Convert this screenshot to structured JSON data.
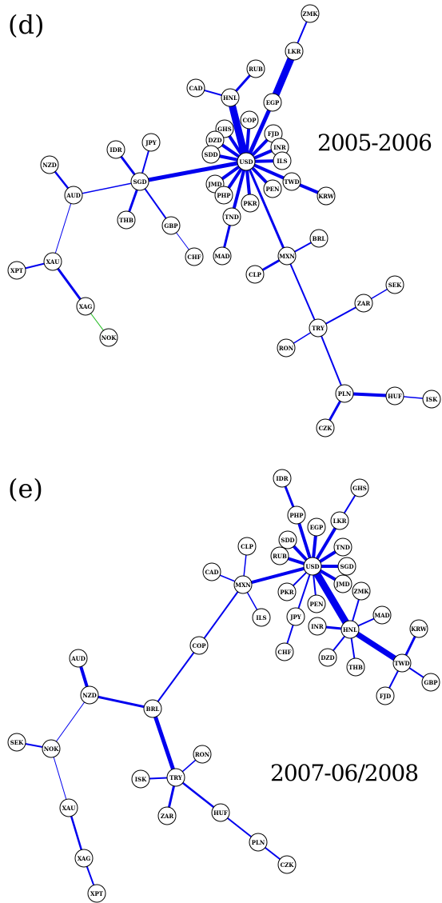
{
  "colors": {
    "strong": "#0000ee",
    "weak": "#22bb22",
    "node_stroke": "#000000",
    "node_fill": "#ffffff"
  },
  "panels": [
    {
      "tag": "(d)",
      "period": "2005-2006",
      "nodes": [
        "ZMK",
        "LKR",
        "RUB",
        "CAD",
        "HNL",
        "EGP",
        "COP",
        "GHS",
        "DZD",
        "FJD",
        "INR",
        "SDD",
        "USD",
        "ILS",
        "IDR",
        "JPY",
        "NZD",
        "SGD",
        "AUD",
        "JMD",
        "PHP",
        "TWD",
        "PEN",
        "KRW",
        "PKR",
        "TND",
        "THB",
        "GBP",
        "CHF",
        "MAD",
        "BRL",
        "MXN",
        "CLP",
        "XAU",
        "XPT",
        "SEK",
        "ZAR",
        "XAG",
        "TRY",
        "NOK",
        "RON",
        "PLN",
        "HUF",
        "ISK",
        "CZK"
      ],
      "edges": [
        {
          "a": "USD",
          "b": "HNL",
          "strength": "strong",
          "weight": 9
        },
        {
          "a": "USD",
          "b": "EGP",
          "strength": "strong",
          "weight": 5
        },
        {
          "a": "EGP",
          "b": "LKR",
          "strength": "strong",
          "weight": 9
        },
        {
          "a": "LKR",
          "b": "ZMK",
          "strength": "strong",
          "weight": 2
        },
        {
          "a": "HNL",
          "b": "CAD",
          "strength": "strong",
          "weight": 2
        },
        {
          "a": "HNL",
          "b": "RUB",
          "strength": "strong",
          "weight": 3
        },
        {
          "a": "USD",
          "b": "COP",
          "strength": "strong",
          "weight": 4
        },
        {
          "a": "USD",
          "b": "GHS",
          "strength": "strong",
          "weight": 4
        },
        {
          "a": "USD",
          "b": "DZD",
          "strength": "strong",
          "weight": 4
        },
        {
          "a": "USD",
          "b": "SDD",
          "strength": "strong",
          "weight": 4
        },
        {
          "a": "USD",
          "b": "FJD",
          "strength": "strong",
          "weight": 4
        },
        {
          "a": "USD",
          "b": "INR",
          "strength": "strong",
          "weight": 4
        },
        {
          "a": "USD",
          "b": "ILS",
          "strength": "strong",
          "weight": 4
        },
        {
          "a": "USD",
          "b": "TWD",
          "strength": "strong",
          "weight": 4
        },
        {
          "a": "TWD",
          "b": "KRW",
          "strength": "strong",
          "weight": 4
        },
        {
          "a": "USD",
          "b": "PEN",
          "strength": "strong",
          "weight": 4
        },
        {
          "a": "USD",
          "b": "PKR",
          "strength": "strong",
          "weight": 4
        },
        {
          "a": "USD",
          "b": "PHP",
          "strength": "strong",
          "weight": 4
        },
        {
          "a": "USD",
          "b": "JMD",
          "strength": "strong",
          "weight": 4
        },
        {
          "a": "USD",
          "b": "TND",
          "strength": "strong",
          "weight": 4
        },
        {
          "a": "TND",
          "b": "MAD",
          "strength": "strong",
          "weight": 3
        },
        {
          "a": "USD",
          "b": "SGD",
          "strength": "strong",
          "weight": 5
        },
        {
          "a": "USD",
          "b": "MXN",
          "strength": "strong",
          "weight": 3
        },
        {
          "a": "SGD",
          "b": "IDR",
          "strength": "strong",
          "weight": 3
        },
        {
          "a": "SGD",
          "b": "JPY",
          "strength": "strong",
          "weight": 2
        },
        {
          "a": "SGD",
          "b": "THB",
          "strength": "strong",
          "weight": 3
        },
        {
          "a": "SGD",
          "b": "GBP",
          "strength": "strong",
          "weight": 2
        },
        {
          "a": "GBP",
          "b": "CHF",
          "strength": "strong",
          "weight": 1
        },
        {
          "a": "SGD",
          "b": "AUD",
          "strength": "strong",
          "weight": 1.5
        },
        {
          "a": "AUD",
          "b": "NZD",
          "strength": "strong",
          "weight": 2.5
        },
        {
          "a": "AUD",
          "b": "XAU",
          "strength": "strong",
          "weight": 1
        },
        {
          "a": "XAU",
          "b": "XPT",
          "strength": "strong",
          "weight": 2
        },
        {
          "a": "XAU",
          "b": "XAG",
          "strength": "strong",
          "weight": 3
        },
        {
          "a": "XAG",
          "b": "NOK",
          "strength": "weak",
          "weight": 1
        },
        {
          "a": "MXN",
          "b": "BRL",
          "strength": "strong",
          "weight": 2
        },
        {
          "a": "MXN",
          "b": "CLP",
          "strength": "strong",
          "weight": 3
        },
        {
          "a": "MXN",
          "b": "TRY",
          "strength": "strong",
          "weight": 2
        },
        {
          "a": "TRY",
          "b": "ZAR",
          "strength": "strong",
          "weight": 2
        },
        {
          "a": "ZAR",
          "b": "SEK",
          "strength": "strong",
          "weight": 1.5
        },
        {
          "a": "TRY",
          "b": "RON",
          "strength": "strong",
          "weight": 1.5
        },
        {
          "a": "TRY",
          "b": "PLN",
          "strength": "strong",
          "weight": 2
        },
        {
          "a": "PLN",
          "b": "HUF",
          "strength": "strong",
          "weight": 4
        },
        {
          "a": "HUF",
          "b": "ISK",
          "strength": "strong",
          "weight": 1.5
        },
        {
          "a": "PLN",
          "b": "CZK",
          "strength": "strong",
          "weight": 3
        }
      ]
    },
    {
      "tag": "(e)",
      "period": "2007-06/2008",
      "nodes": [
        "IDR",
        "GHS",
        "PHP",
        "LKR",
        "EGP",
        "SDD",
        "CLP",
        "TND",
        "RUB",
        "SGD",
        "USD",
        "CAD",
        "MXN",
        "JMD",
        "ZMK",
        "PKR",
        "PEN",
        "MAD",
        "JPY",
        "INR",
        "HNL",
        "ILS",
        "KRW",
        "DZD",
        "THB",
        "TWD",
        "CHF",
        "GBP",
        "FJD",
        "COP",
        "AUD",
        "NZD",
        "BRL",
        "SEK",
        "NOK",
        "RON",
        "ISK",
        "TRY",
        "HUF",
        "ZAR",
        "XAU",
        "PLN",
        "XAG",
        "CZK",
        "XPT"
      ],
      "edges": [
        {
          "a": "USD",
          "b": "PHP",
          "strength": "strong",
          "weight": 4
        },
        {
          "a": "PHP",
          "b": "IDR",
          "strength": "strong",
          "weight": 3
        },
        {
          "a": "USD",
          "b": "EGP",
          "strength": "strong",
          "weight": 4
        },
        {
          "a": "USD",
          "b": "LKR",
          "strength": "strong",
          "weight": 4
        },
        {
          "a": "LKR",
          "b": "GHS",
          "strength": "strong",
          "weight": 2
        },
        {
          "a": "USD",
          "b": "SDD",
          "strength": "strong",
          "weight": 4
        },
        {
          "a": "USD",
          "b": "RUB",
          "strength": "strong",
          "weight": 4
        },
        {
          "a": "USD",
          "b": "TND",
          "strength": "strong",
          "weight": 4
        },
        {
          "a": "USD",
          "b": "SGD",
          "strength": "strong",
          "weight": 4
        },
        {
          "a": "USD",
          "b": "JMD",
          "strength": "strong",
          "weight": 4
        },
        {
          "a": "USD",
          "b": "PKR",
          "strength": "strong",
          "weight": 2
        },
        {
          "a": "USD",
          "b": "PEN",
          "strength": "strong",
          "weight": 2
        },
        {
          "a": "USD",
          "b": "JPY",
          "strength": "strong",
          "weight": 2
        },
        {
          "a": "JPY",
          "b": "CHF",
          "strength": "strong",
          "weight": 2
        },
        {
          "a": "USD",
          "b": "HNL",
          "strength": "strong",
          "weight": 9
        },
        {
          "a": "USD",
          "b": "MXN",
          "strength": "strong",
          "weight": 4
        },
        {
          "a": "MXN",
          "b": "CLP",
          "strength": "strong",
          "weight": 1.5
        },
        {
          "a": "MXN",
          "b": "CAD",
          "strength": "strong",
          "weight": 1.5
        },
        {
          "a": "MXN",
          "b": "ILS",
          "strength": "strong",
          "weight": 1.5
        },
        {
          "a": "MXN",
          "b": "COP",
          "strength": "strong",
          "weight": 2
        },
        {
          "a": "HNL",
          "b": "ZMK",
          "strength": "strong",
          "weight": 2
        },
        {
          "a": "HNL",
          "b": "MAD",
          "strength": "strong",
          "weight": 2
        },
        {
          "a": "HNL",
          "b": "INR",
          "strength": "strong",
          "weight": 3
        },
        {
          "a": "HNL",
          "b": "DZD",
          "strength": "strong",
          "weight": 2
        },
        {
          "a": "HNL",
          "b": "THB",
          "strength": "strong",
          "weight": 2
        },
        {
          "a": "HNL",
          "b": "TWD",
          "strength": "strong",
          "weight": 7
        },
        {
          "a": "TWD",
          "b": "KRW",
          "strength": "strong",
          "weight": 3
        },
        {
          "a": "TWD",
          "b": "GBP",
          "strength": "strong",
          "weight": 2
        },
        {
          "a": "TWD",
          "b": "FJD",
          "strength": "strong",
          "weight": 2
        },
        {
          "a": "COP",
          "b": "BRL",
          "strength": "strong",
          "weight": 2
        },
        {
          "a": "BRL",
          "b": "NZD",
          "strength": "strong",
          "weight": 3
        },
        {
          "a": "NZD",
          "b": "AUD",
          "strength": "strong",
          "weight": 4
        },
        {
          "a": "NZD",
          "b": "NOK",
          "strength": "strong",
          "weight": 1
        },
        {
          "a": "NOK",
          "b": "SEK",
          "strength": "strong",
          "weight": 2
        },
        {
          "a": "NOK",
          "b": "XAU",
          "strength": "strong",
          "weight": 1
        },
        {
          "a": "XAU",
          "b": "XAG",
          "strength": "strong",
          "weight": 2.5
        },
        {
          "a": "XAG",
          "b": "XPT",
          "strength": "strong",
          "weight": 2
        },
        {
          "a": "BRL",
          "b": "TRY",
          "strength": "strong",
          "weight": 5
        },
        {
          "a": "TRY",
          "b": "RON",
          "strength": "strong",
          "weight": 1.5
        },
        {
          "a": "TRY",
          "b": "ISK",
          "strength": "strong",
          "weight": 2
        },
        {
          "a": "TRY",
          "b": "ZAR",
          "strength": "strong",
          "weight": 3
        },
        {
          "a": "TRY",
          "b": "HUF",
          "strength": "strong",
          "weight": 2.5
        },
        {
          "a": "HUF",
          "b": "PLN",
          "strength": "strong",
          "weight": 2
        },
        {
          "a": "PLN",
          "b": "CZK",
          "strength": "strong",
          "weight": 2
        }
      ]
    }
  ]
}
